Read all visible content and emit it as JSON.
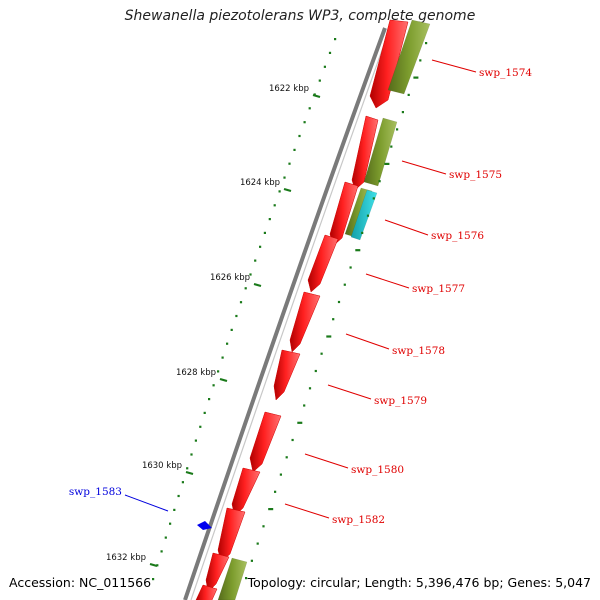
{
  "title": "Shewanella piezotolerans WP3, complete genome",
  "footer": {
    "accession": "Accession: NC_011566",
    "summary": "Topology: circular; Length: 5,396,476 bp; Genes: 5,047"
  },
  "ticks": [
    "1622 kbp",
    "1624 kbp",
    "1626 kbp",
    "1628 kbp",
    "1630 kbp",
    "1632 kbp"
  ],
  "gene_labels": [
    {
      "label": "swp_1574",
      "color": "#e00000"
    },
    {
      "label": "swp_1575",
      "color": "#e00000"
    },
    {
      "label": "swp_1576",
      "color": "#e00000"
    },
    {
      "label": "swp_1577",
      "color": "#e00000"
    },
    {
      "label": "swp_1578",
      "color": "#e00000"
    },
    {
      "label": "swp_1579",
      "color": "#e00000"
    },
    {
      "label": "swp_1580",
      "color": "#e00000"
    },
    {
      "label": "swp_1582",
      "color": "#e00000"
    },
    {
      "label": "swp_1583",
      "color": "#0000dd"
    }
  ],
  "colors": {
    "backbone": "#808080",
    "cds_red": "#ff0000",
    "cds_olive": "#7a9a2a",
    "cds_cyan": "#20c8d0",
    "gene_blue": "#0000ee",
    "gc_dots": "#1a7a1a"
  }
}
